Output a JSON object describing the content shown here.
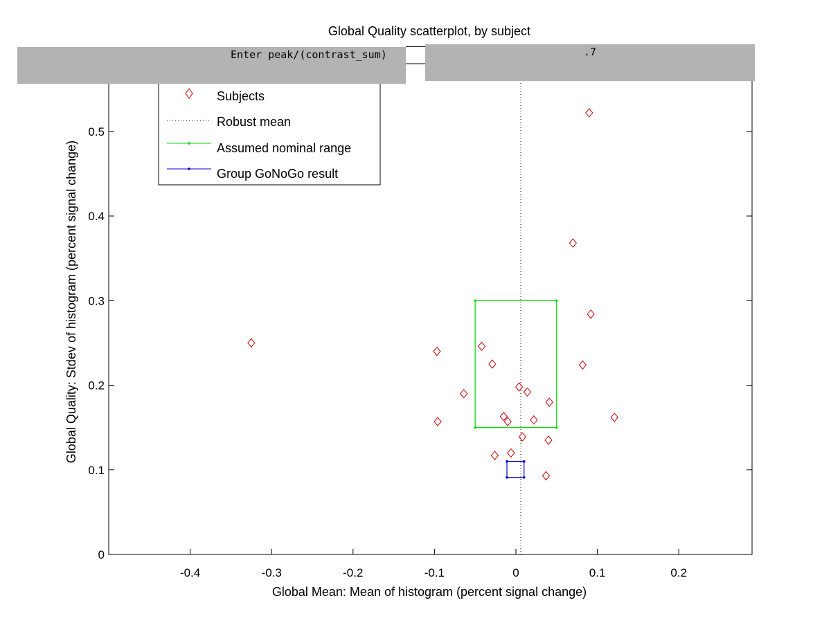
{
  "prompt": {
    "label": "Enter peak/(contrast_sum)",
    "value": ".7"
  },
  "chart_data": {
    "type": "scatter",
    "title": "Global Quality scatterplot, by subject",
    "xlabel": "Global Mean: Mean of histogram (percent signal change)",
    "ylabel": "Global Quality: Stdev of histogram (percent signal change)",
    "xlim": [
      -0.5,
      0.29
    ],
    "ylim": [
      0,
      0.58
    ],
    "xticks": [
      -0.4,
      -0.3,
      -0.2,
      -0.1,
      0,
      0.1,
      0.2
    ],
    "xtick_labels": [
      "-0.4",
      "-0.3",
      "-0.2",
      "-0.1",
      "0",
      "0.1",
      "0.2"
    ],
    "yticks": [
      0,
      0.1,
      0.2,
      0.3,
      0.4,
      0.5
    ],
    "ytick_labels": [
      "0",
      "0.1",
      "0.2",
      "0.3",
      "0.4",
      "0.5"
    ],
    "grid": false,
    "legend_position": "top-left",
    "colors": {
      "subjects": "#cc0000",
      "robust_mean": "#000000",
      "nominal_range": "#00dd00",
      "group_result": "#0000cc"
    },
    "series": [
      {
        "name": "Subjects",
        "marker": "diamond",
        "x": [
          -0.325,
          -0.097,
          -0.096,
          -0.064,
          -0.042,
          -0.029,
          -0.026,
          -0.015,
          -0.01,
          -0.006,
          0.004,
          0.008,
          0.014,
          0.022,
          0.037,
          0.04,
          0.041,
          0.07,
          0.082,
          0.09,
          0.092,
          0.121
        ],
        "y": [
          0.25,
          0.24,
          0.157,
          0.19,
          0.246,
          0.225,
          0.117,
          0.163,
          0.157,
          0.12,
          0.198,
          0.139,
          0.192,
          0.159,
          0.093,
          0.135,
          0.18,
          0.368,
          0.224,
          0.522,
          0.284,
          0.162
        ]
      },
      {
        "name": "Robust mean",
        "style": "dotted-vertical",
        "x": 0.006
      },
      {
        "name": "Assumed nominal range",
        "style": "rectangle",
        "x": [
          -0.05,
          0.05
        ],
        "y": [
          0.15,
          0.3
        ]
      },
      {
        "name": "Group GoNoGo result",
        "style": "rectangle",
        "x": [
          -0.011,
          0.01
        ],
        "y": [
          0.091,
          0.11
        ]
      }
    ]
  }
}
